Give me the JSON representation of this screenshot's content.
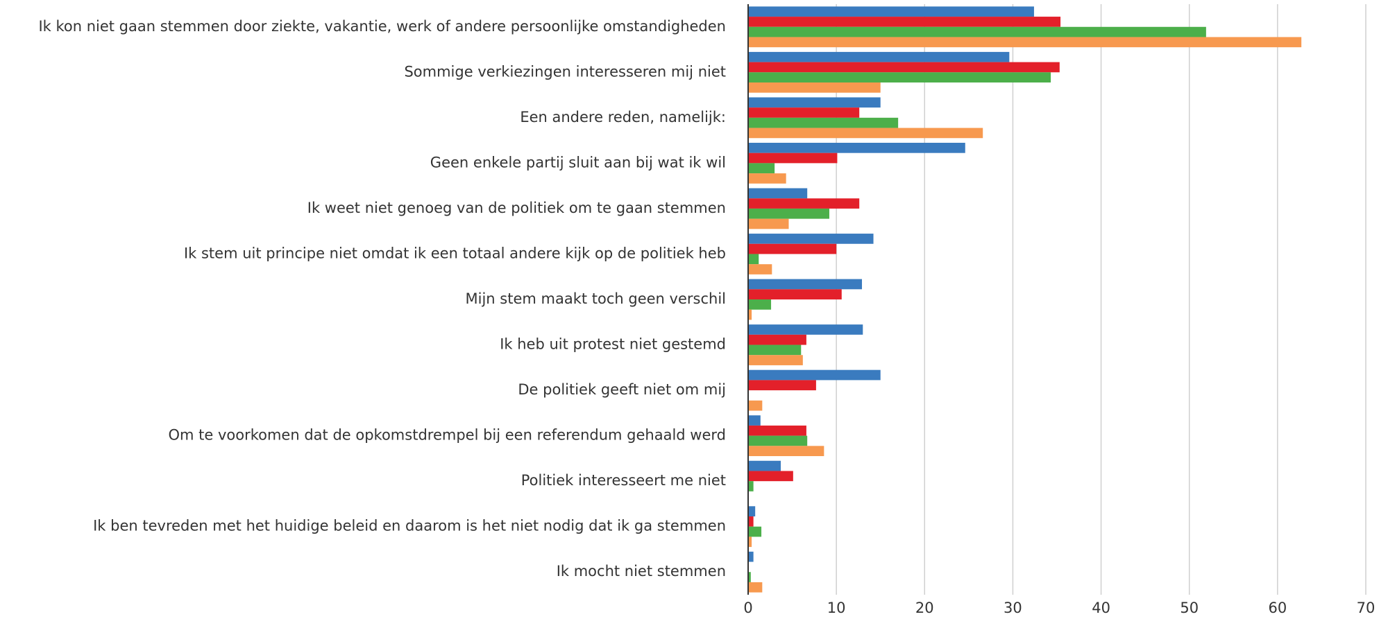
{
  "chart_data": {
    "type": "barh",
    "categories": [
      "Ik kon niet gaan stemmen door ziekte, vakantie, werk of andere persoonlijke omstandigheden",
      "Sommige verkiezingen interesseren mij niet",
      "Een andere reden, namelijk:",
      "Geen enkele partij sluit aan bij wat ik wil",
      "Ik weet niet genoeg van de politiek om te gaan stemmen",
      "Ik stem uit principe niet omdat ik een totaal andere kijk op de politiek heb",
      "Mijn stem maakt toch geen verschil",
      "Ik heb uit protest niet gestemd",
      "De politiek geeft niet om mij",
      "Om te voorkomen dat de opkomstdrempel bij een referendum gehaald werd",
      "Politiek interesseert me niet",
      "Ik ben tevreden met het huidige beleid en daarom is het niet nodig dat ik ga stemmen",
      "Ik mocht niet stemmen"
    ],
    "series": [
      {
        "color": "#3a7bbf",
        "values": [
          32.4,
          29.6,
          15.0,
          24.6,
          6.7,
          14.2,
          12.9,
          13.0,
          15.0,
          1.4,
          3.7,
          0.8,
          0.6
        ]
      },
      {
        "color": "#e3202a",
        "values": [
          35.4,
          35.3,
          12.6,
          10.1,
          12.6,
          10.0,
          10.6,
          6.6,
          7.7,
          6.6,
          5.1,
          0.6,
          0
        ]
      },
      {
        "color": "#4caf4a",
        "values": [
          51.9,
          34.3,
          17.0,
          3.0,
          9.2,
          1.2,
          2.6,
          6.0,
          0,
          6.7,
          0.6,
          1.5,
          0.3
        ]
      },
      {
        "color": "#f7994f",
        "values": [
          62.7,
          15.0,
          26.6,
          4.3,
          4.6,
          2.7,
          0.4,
          6.2,
          1.6,
          8.6,
          0,
          0.4,
          1.6
        ]
      }
    ],
    "xlim": [
      0,
      70
    ],
    "xticks": [
      0,
      10,
      20,
      30,
      40,
      50,
      60,
      70
    ],
    "grid": true
  }
}
